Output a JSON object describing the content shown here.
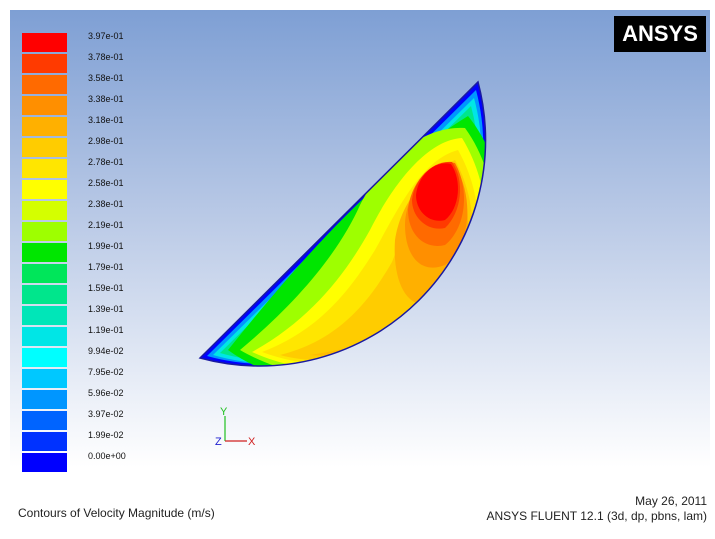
{
  "legend": {
    "labels": [
      "3.97e-01",
      "3.78e-01",
      "3.58e-01",
      "3.38e-01",
      "3.18e-01",
      "2.98e-01",
      "2.78e-01",
      "2.58e-01",
      "2.38e-01",
      "2.19e-01",
      "1.99e-01",
      "1.79e-01",
      "1.59e-01",
      "1.39e-01",
      "1.19e-01",
      "9.94e-02",
      "7.95e-02",
      "5.96e-02",
      "3.97e-02",
      "1.99e-02",
      "0.00e+00"
    ],
    "colors": [
      "#ff0000",
      "#ff3a00",
      "#ff6a00",
      "#ff8f00",
      "#ffb000",
      "#ffcc00",
      "#ffe600",
      "#ffff00",
      "#d4ff00",
      "#9eff00",
      "#00e600",
      "#00e65a",
      "#00e68c",
      "#00e6b8",
      "#00e6e6",
      "#00ffff",
      "#00c8ff",
      "#0096ff",
      "#0064ff",
      "#0032ff",
      "#0000ff"
    ]
  },
  "logo": {
    "text": "ANSYS"
  },
  "axes": {
    "y": "Y",
    "z": "Z",
    "x": "X"
  },
  "footer": {
    "title": "Contours of Velocity Magnitude (m/s)",
    "date": "May 26, 2011",
    "product": "ANSYS FLUENT 12.1 (3d, dp, pbns, lam)"
  }
}
